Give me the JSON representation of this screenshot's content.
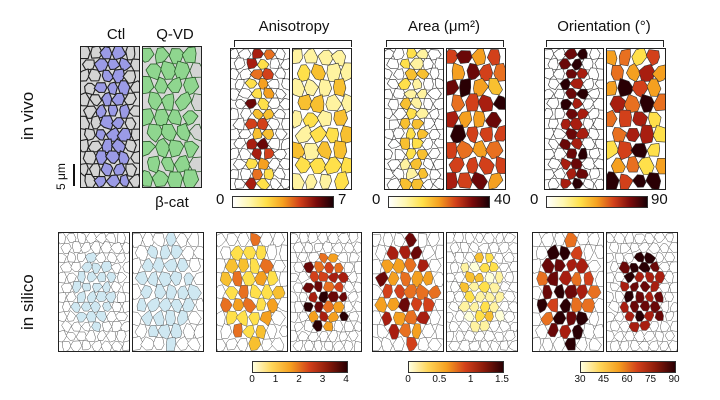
{
  "rows": {
    "top": "in vivo",
    "bottom": "in silico"
  },
  "invivo": {
    "labels": {
      "ctl": "Ctl",
      "qvd": "Q-VD",
      "stain": "β-cat",
      "scale": "5 μm"
    },
    "anisotropy": {
      "title": "Anisotropy",
      "min": "0",
      "max": "7"
    },
    "area": {
      "title": "Area (μm²)",
      "min": "0",
      "max": "40"
    },
    "orientation": {
      "title": "Orientation (°)",
      "min": "0",
      "max": "90"
    }
  },
  "insilico": {
    "anisotropy_ticks": [
      "0",
      "1",
      "2",
      "3",
      "4"
    ],
    "area_ticks": [
      "0",
      "0.5",
      "1",
      "1.5"
    ],
    "orientation_ticks": [
      "30",
      "45",
      "60",
      "75",
      "90"
    ]
  },
  "colors": {
    "ctl_overlay": "#9b9be6",
    "qvd_overlay": "#8fd68f",
    "silico_highlight": "#cfe8f2",
    "heat_low": "#ffffe0",
    "heat_mid": "#f08a1e",
    "heat_high": "#1a0006"
  }
}
